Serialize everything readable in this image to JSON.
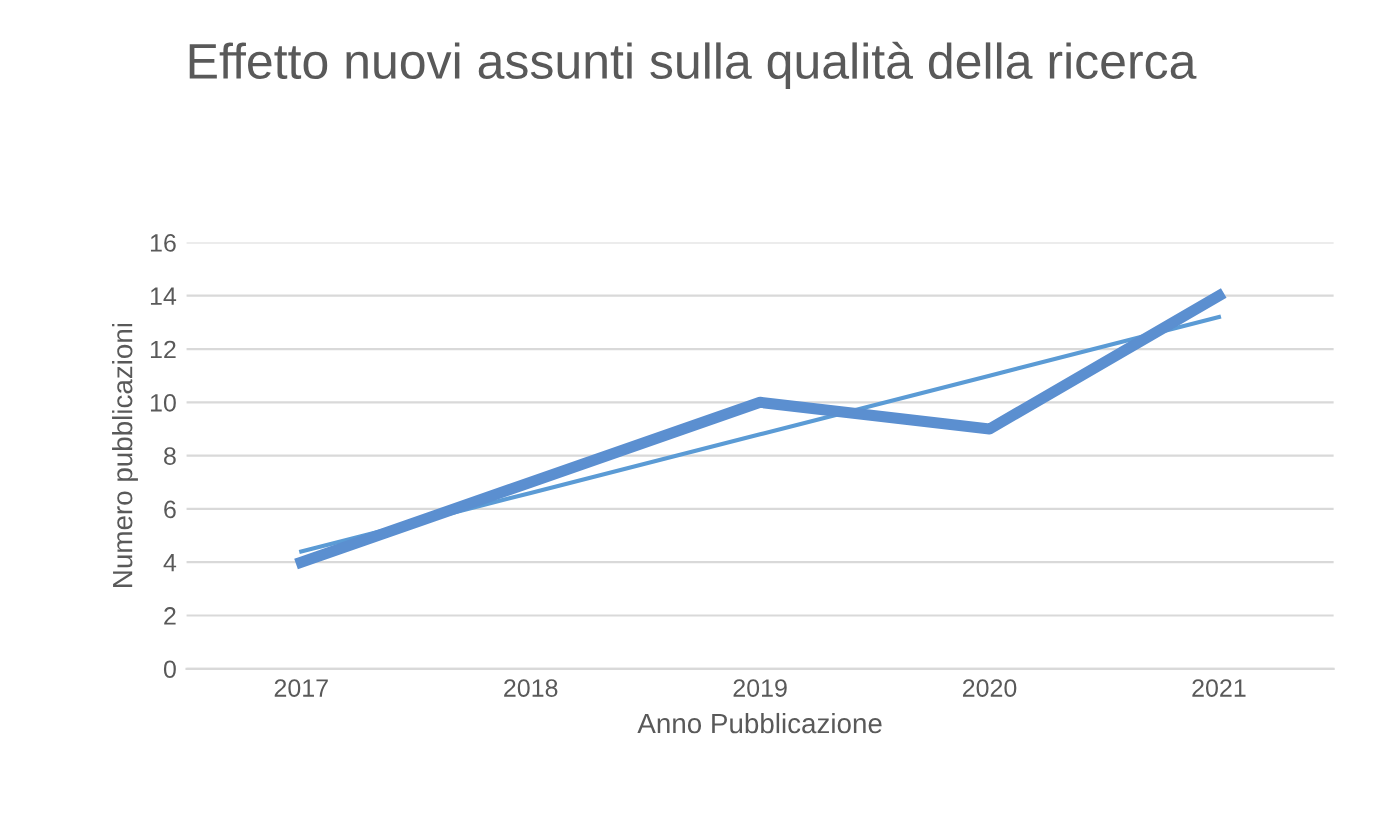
{
  "chart_data": {
    "type": "line",
    "title": "Effetto nuovi assunti sulla qualità della ricerca",
    "xlabel": "Anno Pubblicazione",
    "ylabel": "Numero pubblicazioni",
    "categories": [
      "2017",
      "2018",
      "2019",
      "2020",
      "2021"
    ],
    "series": [
      {
        "color": "#5b8fd0",
        "values": [
          4,
          7,
          10,
          9,
          14
        ]
      },
      {
        "type": "line",
        "color": "#5b9bd5",
        "values": [
          4.4,
          6.6,
          8.8,
          11,
          13.2
        ]
      }
    ],
    "ylim": [
      0,
      16
    ],
    "yticks": [
      0,
      2,
      4,
      6,
      8,
      10,
      12,
      14,
      16
    ],
    "grid": "y",
    "marker": "none",
    "line_style": "solid"
  }
}
